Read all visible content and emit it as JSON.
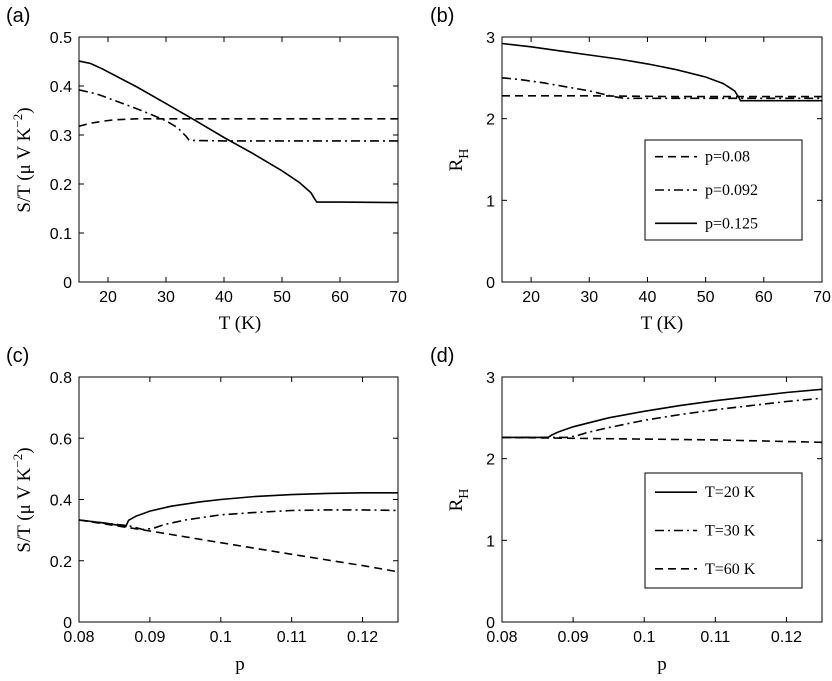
{
  "chart_data": [
    {
      "panel": "(a)",
      "type": "line",
      "xlabel": "T (K)",
      "ylabel": "S/T (μ V K^-2)",
      "ylabel_parts": {
        "base": "S/T (μ V K",
        "sup": "−2",
        "close": ")"
      },
      "xlim": [
        15,
        70
      ],
      "ylim": [
        0,
        0.5
      ],
      "xticks": [
        20,
        30,
        40,
        50,
        60,
        70
      ],
      "yticks": [
        0,
        0.1,
        0.2,
        0.3,
        0.4,
        0.5
      ],
      "xtick_labels": [
        "20",
        "30",
        "40",
        "50",
        "60",
        "70"
      ],
      "ytick_labels": [
        "0",
        "0.1",
        "0.2",
        "0.3",
        "0.4",
        "0.5"
      ],
      "series": [
        {
          "name": "p=0.08",
          "dash": "dashed",
          "x": [
            15,
            17,
            19,
            21,
            23,
            25,
            28,
            32,
            40,
            50,
            60,
            70
          ],
          "y": [
            0.318,
            0.324,
            0.328,
            0.331,
            0.332,
            0.333,
            0.333,
            0.333,
            0.333,
            0.333,
            0.333,
            0.333
          ]
        },
        {
          "name": "p=0.092",
          "dash": "dashdot",
          "x": [
            15,
            18,
            21,
            24,
            27,
            30,
            32,
            33.5,
            34,
            40,
            50,
            60,
            70
          ],
          "y": [
            0.392,
            0.384,
            0.371,
            0.358,
            0.344,
            0.329,
            0.315,
            0.297,
            0.289,
            0.288,
            0.288,
            0.288,
            0.288
          ]
        },
        {
          "name": "p=0.125",
          "dash": "solid",
          "x": [
            15,
            17,
            19,
            25,
            30,
            35,
            40,
            45,
            50,
            53,
            55,
            55.6,
            56,
            60,
            70
          ],
          "y": [
            0.451,
            0.446,
            0.435,
            0.398,
            0.364,
            0.33,
            0.295,
            0.262,
            0.227,
            0.203,
            0.182,
            0.17,
            0.163,
            0.163,
            0.162
          ]
        }
      ]
    },
    {
      "panel": "(b)",
      "type": "line",
      "xlabel": "T (K)",
      "ylabel": "R_H",
      "ylabel_parts": {
        "base": "R",
        "sub": "H"
      },
      "xlim": [
        15,
        70
      ],
      "ylim": [
        0,
        3
      ],
      "xticks": [
        20,
        30,
        40,
        50,
        60,
        70
      ],
      "yticks": [
        0,
        1,
        2,
        3
      ],
      "xtick_labels": [
        "20",
        "30",
        "40",
        "50",
        "60",
        "70"
      ],
      "ytick_labels": [
        "0",
        "1",
        "2",
        "3"
      ],
      "legend": {
        "location": "center-right",
        "entries": [
          "p=0.08",
          "p=0.092",
          "p=0.125"
        ]
      },
      "series": [
        {
          "name": "p=0.08",
          "dash": "dashed",
          "x": [
            15,
            30,
            45,
            60,
            70
          ],
          "y": [
            2.28,
            2.28,
            2.27,
            2.27,
            2.27
          ]
        },
        {
          "name": "p=0.092",
          "dash": "dashdot",
          "x": [
            15,
            18,
            22,
            26,
            30,
            33,
            35,
            36,
            45,
            60,
            70
          ],
          "y": [
            2.5,
            2.48,
            2.44,
            2.39,
            2.34,
            2.29,
            2.26,
            2.25,
            2.25,
            2.25,
            2.25
          ]
        },
        {
          "name": "p=0.125",
          "dash": "solid",
          "x": [
            15,
            20,
            25,
            30,
            35,
            40,
            45,
            50,
            53,
            55,
            55.7,
            56,
            60,
            70
          ],
          "y": [
            2.92,
            2.88,
            2.83,
            2.78,
            2.73,
            2.67,
            2.6,
            2.51,
            2.43,
            2.34,
            2.26,
            2.22,
            2.22,
            2.22
          ]
        }
      ]
    },
    {
      "panel": "(c)",
      "type": "line",
      "xlabel": "p",
      "ylabel": "S/T (μ V K^-2)",
      "ylabel_parts": {
        "base": "S/T (μ V K",
        "sup": "−2",
        "close": ")"
      },
      "xlim": [
        0.08,
        0.125
      ],
      "ylim": [
        0,
        0.8
      ],
      "xticks": [
        0.08,
        0.09,
        0.1,
        0.11,
        0.12
      ],
      "yticks": [
        0,
        0.2,
        0.4,
        0.6,
        0.8
      ],
      "xtick_labels": [
        "0.08",
        "0.09",
        "0.1",
        "0.11",
        "0.12"
      ],
      "ytick_labels": [
        "0",
        "0.2",
        "0.4",
        "0.6",
        "0.8"
      ],
      "series": [
        {
          "name": "T=20 K",
          "dash": "solid",
          "x": [
            0.08,
            0.084,
            0.0866,
            0.087,
            0.088,
            0.09,
            0.093,
            0.097,
            0.1,
            0.105,
            0.11,
            0.115,
            0.12,
            0.125
          ],
          "y": [
            0.333,
            0.322,
            0.312,
            0.332,
            0.345,
            0.362,
            0.378,
            0.392,
            0.4,
            0.41,
            0.416,
            0.42,
            0.422,
            0.422
          ]
        },
        {
          "name": "T=30 K",
          "dash": "dashdot",
          "x": [
            0.08,
            0.084,
            0.087,
            0.089,
            0.0905,
            0.092,
            0.095,
            0.1,
            0.105,
            0.11,
            0.115,
            0.12,
            0.125
          ],
          "y": [
            0.333,
            0.322,
            0.314,
            0.302,
            0.306,
            0.318,
            0.333,
            0.35,
            0.358,
            0.364,
            0.366,
            0.366,
            0.364
          ]
        },
        {
          "name": "T=60 K",
          "dash": "dashed",
          "x": [
            0.08,
            0.09,
            0.1,
            0.11,
            0.12,
            0.125
          ],
          "y": [
            0.333,
            0.297,
            0.259,
            0.221,
            0.184,
            0.164
          ]
        }
      ]
    },
    {
      "panel": "(d)",
      "type": "line",
      "xlabel": "p",
      "ylabel": "R_H",
      "ylabel_parts": {
        "base": "R",
        "sub": "H"
      },
      "xlim": [
        0.08,
        0.125
      ],
      "ylim": [
        0,
        3
      ],
      "xticks": [
        0.08,
        0.09,
        0.1,
        0.11,
        0.12
      ],
      "yticks": [
        0,
        1,
        2,
        3
      ],
      "xtick_labels": [
        "0.08",
        "0.09",
        "0.1",
        "0.11",
        "0.12"
      ],
      "ytick_labels": [
        "0",
        "1",
        "2",
        "3"
      ],
      "legend": {
        "location": "center-right",
        "entries": [
          "T=20 K",
          "T=30 K",
          "T=60 K"
        ]
      },
      "series": [
        {
          "name": "T=20 K",
          "dash": "solid",
          "x": [
            0.08,
            0.084,
            0.0865,
            0.087,
            0.088,
            0.09,
            0.095,
            0.1,
            0.105,
            0.11,
            0.115,
            0.12,
            0.125
          ],
          "y": [
            2.26,
            2.26,
            2.26,
            2.29,
            2.33,
            2.39,
            2.5,
            2.58,
            2.65,
            2.71,
            2.76,
            2.81,
            2.85
          ]
        },
        {
          "name": "T=30 K",
          "dash": "dashdot",
          "x": [
            0.08,
            0.085,
            0.089,
            0.0905,
            0.092,
            0.095,
            0.1,
            0.105,
            0.11,
            0.115,
            0.12,
            0.125
          ],
          "y": [
            2.26,
            2.26,
            2.26,
            2.28,
            2.32,
            2.38,
            2.47,
            2.54,
            2.6,
            2.65,
            2.7,
            2.74
          ]
        },
        {
          "name": "T=60 K",
          "dash": "dashed",
          "x": [
            0.08,
            0.09,
            0.1,
            0.11,
            0.12,
            0.125
          ],
          "y": [
            2.26,
            2.25,
            2.24,
            2.23,
            2.21,
            2.2
          ]
        }
      ]
    }
  ]
}
